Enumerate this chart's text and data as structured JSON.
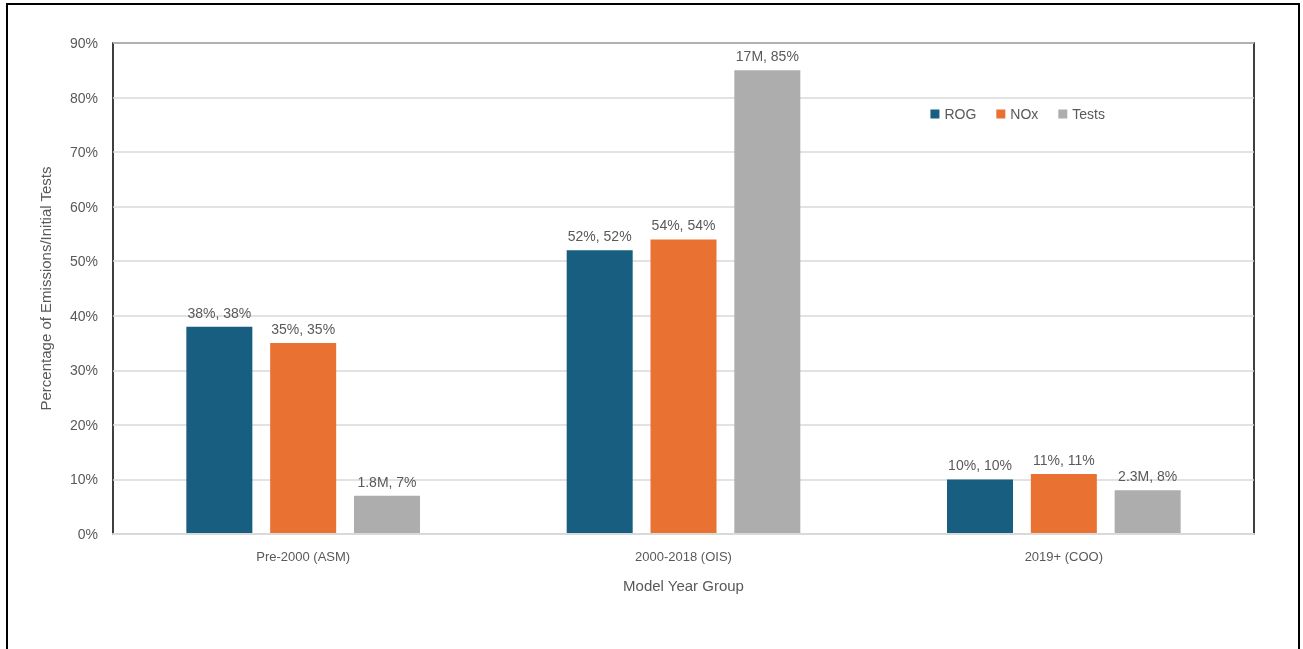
{
  "chart_data": {
    "type": "bar",
    "xlabel": "Model Year Group",
    "ylabel": "Percentage of Emissions/Initial Tests",
    "categories": [
      "Pre-2000 (ASM)",
      "2000-2018 (OIS)",
      "2019+ (COO)"
    ],
    "series": [
      {
        "name": "ROG",
        "color": "#175e80",
        "values": [
          38,
          52,
          10
        ],
        "value_labels": [
          "38%, 38%",
          "52%, 52%",
          "10%, 10%"
        ]
      },
      {
        "name": "NOx",
        "color": "#e97132",
        "values": [
          35,
          54,
          11
        ],
        "value_labels": [
          "35%, 35%",
          "54%, 54%",
          "11%, 11%"
        ]
      },
      {
        "name": "Tests",
        "color": "#adadad",
        "values": [
          7,
          85,
          8
        ],
        "value_labels": [
          "1.8M, 7%",
          "17M, 85%",
          "2.3M, 8%"
        ]
      }
    ],
    "ylim": [
      0,
      90
    ],
    "yticks": [
      {
        "value": 0,
        "label": "0%"
      },
      {
        "value": 10,
        "label": "10%"
      },
      {
        "value": 20,
        "label": "20%"
      },
      {
        "value": 30,
        "label": "30%"
      },
      {
        "value": 40,
        "label": "40%"
      },
      {
        "value": 50,
        "label": "50%"
      },
      {
        "value": 60,
        "label": "60%"
      },
      {
        "value": 70,
        "label": "70%"
      },
      {
        "value": 80,
        "label": "80%"
      },
      {
        "value": 90,
        "label": "90%"
      }
    ],
    "grid": "y",
    "legend": "top right"
  }
}
